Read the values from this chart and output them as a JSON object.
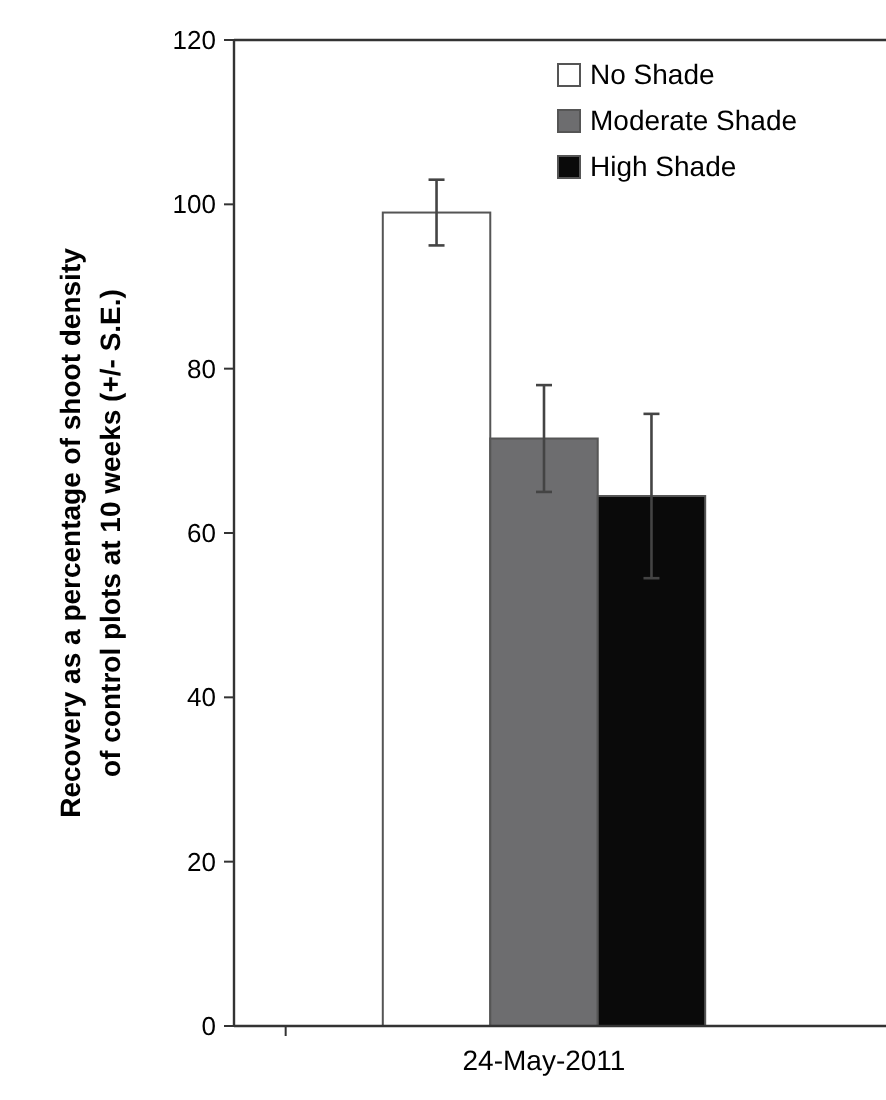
{
  "chart_data": {
    "type": "bar",
    "ylabel": "Recovery as a percentage of shoot density\nof control plots at 10 weeks (+/- S.E.)",
    "categories": [
      "24-May-2011"
    ],
    "series": [
      {
        "name": "No Shade",
        "color": "#ffffff",
        "values": [
          99
        ],
        "errors": [
          4
        ]
      },
      {
        "name": "Moderate Shade",
        "color": "#6d6d6f",
        "values": [
          71.5
        ],
        "errors": [
          6.5
        ]
      },
      {
        "name": "High Shade",
        "color": "#0a0a0a",
        "values": [
          64.5
        ],
        "errors": [
          10
        ]
      }
    ],
    "ylim": [
      0,
      120
    ],
    "yticks": [
      0,
      20,
      40,
      60,
      80,
      100,
      120
    ],
    "grid": false,
    "legend": "top right"
  }
}
